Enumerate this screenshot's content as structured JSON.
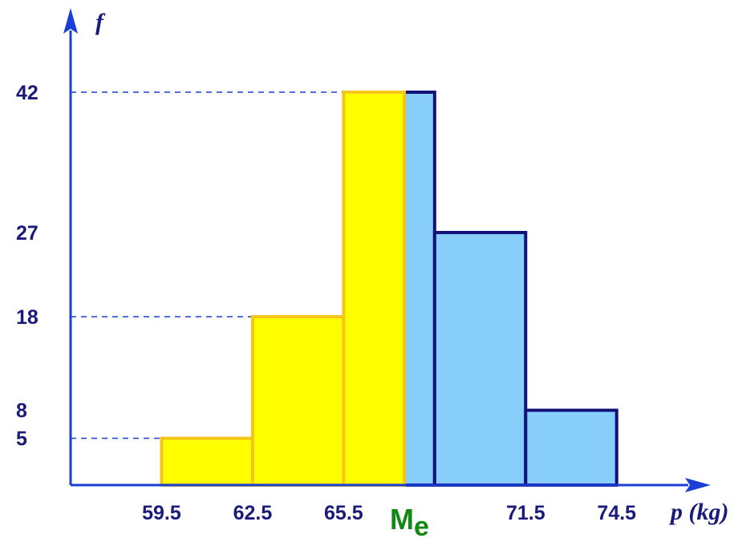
{
  "chart_data": {
    "type": "bar",
    "y_axis_label": "f",
    "x_axis_label": "p (kg)",
    "x_tick_labels": [
      "59.5",
      "62.5",
      "65.5",
      "71.5",
      "74.5"
    ],
    "x_ticks": [
      59.5,
      62.5,
      65.5,
      71.5,
      74.5
    ],
    "y_tick_labels": [
      "42",
      "27",
      "18",
      "8",
      "5"
    ],
    "y_ticks": [
      42,
      27,
      18,
      8,
      5
    ],
    "dashed_reference_levels": [
      42,
      18,
      5
    ],
    "bins": [
      {
        "from": 59.5,
        "to": 62.5,
        "value": 5
      },
      {
        "from": 62.5,
        "to": 65.5,
        "value": 18
      },
      {
        "from": 65.5,
        "to": 68.5,
        "value": 42
      },
      {
        "from": 68.5,
        "to": 71.5,
        "value": 27
      },
      {
        "from": 71.5,
        "to": 74.5,
        "value": 8
      }
    ],
    "median_value": 67.5,
    "median_label_main": "M",
    "median_label_sub": "e",
    "xlim": [
      56.5,
      77.6
    ],
    "ylim": [
      0,
      51
    ],
    "colors": {
      "below_median_fill": "#ffff00",
      "below_median_stroke": "#f5c518",
      "above_median_fill": "#87cefa",
      "above_median_stroke": "#12127a",
      "axis": "#1a3fd6",
      "dashed": "#1a3fd6",
      "text": "#1a1a7a",
      "median_text": "#128a12"
    }
  }
}
